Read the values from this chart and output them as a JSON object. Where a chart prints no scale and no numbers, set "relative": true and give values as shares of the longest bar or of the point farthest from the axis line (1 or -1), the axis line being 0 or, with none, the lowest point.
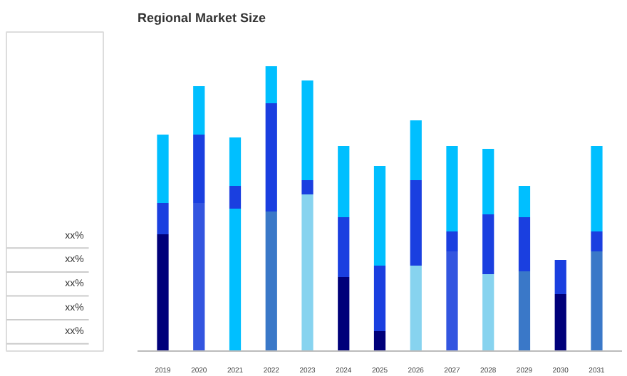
{
  "chart_data": [
    {
      "type": "other",
      "annotations": [
        "xx%",
        "xx%",
        "xx%",
        "xx%",
        "xx%"
      ]
    },
    {
      "type": "bar",
      "title": "Regional Market Size",
      "relative": true,
      "stacked": true,
      "categories": [
        "2019",
        "2020",
        "2021",
        "2022",
        "2023",
        "2024",
        "2025",
        "2026",
        "2027",
        "2028",
        "2029",
        "2030",
        "2031"
      ],
      "series": [
        {
          "colors": [
            "#00007a",
            "#3355e0",
            "#00bfff",
            "#3a78c8",
            "#87d3ef",
            "#00007a",
            "#00007a",
            "#87d3ef",
            "#3355e0",
            "#87d3ef",
            "#3a78c8",
            "#00007a",
            "#3a78c8"
          ],
          "values": [
            0.41,
            0.52,
            0.5,
            0.49,
            0.55,
            0.26,
            0.07,
            0.3,
            0.35,
            0.27,
            0.28,
            0.2,
            0.35
          ]
        },
        {
          "color": "#1a3fe0",
          "values": [
            0.11,
            0.24,
            0.08,
            0.38,
            0.05,
            0.21,
            0.23,
            0.3,
            0.07,
            0.21,
            0.19,
            0.12,
            0.07
          ]
        },
        {
          "color": "#00bfff",
          "values": [
            0.24,
            0.17,
            0.17,
            0.13,
            0.35,
            0.25,
            0.35,
            0.21,
            0.3,
            0.23,
            0.11,
            null,
            0.3
          ]
        }
      ]
    }
  ]
}
